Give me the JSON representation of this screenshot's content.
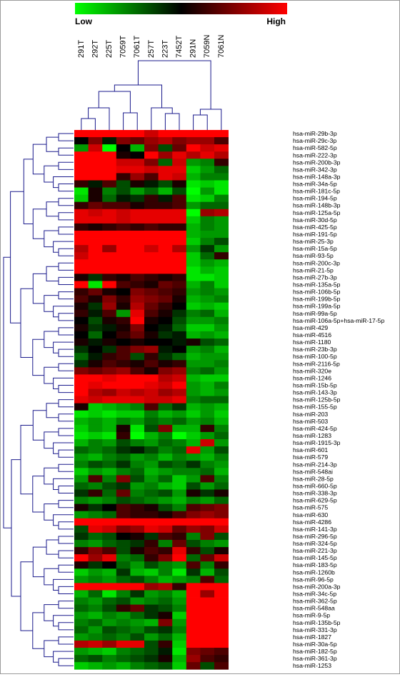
{
  "colors": {
    "low": "#00ff00",
    "mid": "#000000",
    "high": "#ff0000",
    "tree": "#1a1a8c",
    "label": "#000000"
  },
  "legend": {
    "low_label": "Low",
    "high_label": "High"
  },
  "chart_data": {
    "type": "heatmap",
    "title": "",
    "scale": {
      "min": -1,
      "max": 1,
      "min_label": "Low",
      "max_label": "High"
    },
    "columns": [
      "291T",
      "292T",
      "225T",
      "7059T",
      "7061T",
      "257T",
      "223T",
      "7452T",
      "291N",
      "7059N",
      "7061N"
    ],
    "rows": [
      "hsa-miR-29b-3p",
      "hsa-miR-29c-3p",
      "hsa-miR-582-5p",
      "hsa-miR-222-3p",
      "hsa-miR-200b-3p",
      "hsa-miR-342-3p",
      "hsa-miR-148a-3p",
      "hsa-miR-34a-5p",
      "hsa-miR-181c-5p",
      "hsa-miR-194-5p",
      "hsa-miR-148b-3p",
      "hsa-miR-125a-5p",
      "hsa-miR-30d-5p",
      "hsa-miR-425-5p",
      "hsa-miR-191-5p",
      "hsa-miR-25-3p",
      "hsa-miR-15a-5p",
      "hsa-miR-93-5p",
      "hsa-miR-200c-3p",
      "hsa-miR-21-5p",
      "hsa-miR-27b-3p",
      "hsa-miR-135a-5p",
      "hsa-miR-106b-5p",
      "hsa-miR-199b-5p",
      "hsa-miR-199a-5p",
      "hsa-miR-99a-5p",
      "hsa-miR-106a-5p+hsa-miR-17-5p",
      "hsa-miR-429",
      "hsa-miR-4516",
      "hsa-miR-1180",
      "hsa-miR-23b-3p",
      "hsa-miR-100-5p",
      "hsa-miR-2116-5p",
      "hsa-miR-320e",
      "hsa-miR-1246",
      "hsa-miR-15b-5p",
      "hsa-miR-143-3p",
      "hsa-miR-125b-5p",
      "hsa-miR-155-5p",
      "hsa-miR-203",
      "hsa-miR-503",
      "hsa-miR-424-5p",
      "hsa-miR-1283",
      "hsa-miR-1915-3p",
      "hsa-miR-601",
      "hsa-miR-579",
      "hsa-miR-214-3p",
      "hsa-miR-548ai",
      "hsa-miR-28-5p",
      "hsa-miR-660-5p",
      "hsa-miR-338-3p",
      "hsa-miR-629-5p",
      "hsa-miR-575",
      "hsa-miR-630",
      "hsa-miR-4286",
      "hsa-miR-141-3p",
      "hsa-miR-296-5p",
      "hsa-miR-324-5p",
      "hsa-miR-221-3p",
      "hsa-miR-145-5p",
      "hsa-miR-183-5p",
      "hsa-miR-1260b",
      "hsa-miR-96-5p",
      "hsa-miR-200a-3p",
      "hsa-miR-34c-5p",
      "hsa-miR-362-5p",
      "hsa-miR-548aa",
      "hsa-miR-9-5p",
      "hsa-miR-135b-5p",
      "hsa-miR-331-3p",
      "hsa-miR-1827",
      "hsa-miR-30a-5p",
      "hsa-miR-182-5p",
      "hsa-miR-361-3p",
      "hsa-miR-1253"
    ],
    "values": [
      [
        1,
        1,
        1,
        1,
        1,
        0.8,
        1,
        1,
        1,
        1,
        1
      ],
      [
        0,
        0.5,
        -0.1,
        0.5,
        0.4,
        0.6,
        0.7,
        0.5,
        0.6,
        0.6,
        0.3
      ],
      [
        -0.6,
        0.8,
        -1,
        0,
        -0.7,
        0.5,
        -0.3,
        0.4,
        1,
        0.8,
        0.9
      ],
      [
        1,
        1,
        1,
        0.1,
        0,
        1,
        0.6,
        0.9,
        0.7,
        0.9,
        0.7
      ],
      [
        1,
        1,
        1,
        0.8,
        0.8,
        0.5,
        -0.4,
        0.8,
        -0.6,
        -0.5,
        0.2
      ],
      [
        1,
        1,
        1,
        0.9,
        0.9,
        0.8,
        0.9,
        0.9,
        -0.8,
        -0.6,
        -0.4
      ],
      [
        1,
        1,
        1,
        0.2,
        0.6,
        0.3,
        0.9,
        0.8,
        -0.7,
        -0.5,
        -0.5
      ],
      [
        0.2,
        -0.1,
        0.3,
        -0.3,
        0.1,
        -0.1,
        -0.3,
        0.1,
        -0.9,
        -0.8,
        -0.9
      ],
      [
        -0.9,
        0.1,
        -0.5,
        -0.3,
        -0.6,
        -0.4,
        -0.7,
        -0.3,
        -1,
        -0.6,
        -0.9
      ],
      [
        -0.8,
        0.1,
        -0.4,
        -0.1,
        -0.2,
        0.2,
        -0.1,
        0.3,
        -0.9,
        -0.8,
        -0.5
      ],
      [
        0.2,
        0.4,
        0.3,
        0.3,
        0.1,
        0.2,
        0.2,
        0.3,
        -0.6,
        -0.4,
        -0.4
      ],
      [
        0.9,
        0.8,
        0.9,
        0.8,
        0.9,
        0.9,
        0.9,
        0.9,
        -1,
        0.6,
        0.7
      ],
      [
        0.9,
        0.9,
        0.9,
        0.8,
        0.9,
        0.9,
        0.9,
        0.9,
        -0.8,
        -0.5,
        -0.6
      ],
      [
        0.2,
        0.1,
        0.2,
        0.3,
        0.2,
        0.3,
        0.2,
        0.2,
        -0.7,
        -0.5,
        -0.6
      ],
      [
        1,
        1,
        1,
        1,
        1,
        1,
        1,
        1,
        -0.7,
        -0.6,
        -0.6
      ],
      [
        1,
        1,
        1,
        1,
        1,
        1,
        1,
        1,
        -0.8,
        -0.5,
        -0.3
      ],
      [
        0.7,
        1,
        0.6,
        1,
        1,
        0.8,
        1,
        0.7,
        -0.6,
        -0.2,
        -0.6
      ],
      [
        0.8,
        1,
        1,
        1,
        1,
        1,
        1,
        1,
        -0.8,
        -0.4,
        0.2
      ],
      [
        1,
        1,
        1,
        1,
        1,
        1,
        1,
        1,
        -0.8,
        -0.6,
        -0.7
      ],
      [
        1,
        1,
        1,
        1,
        1,
        1,
        1,
        1,
        -0.9,
        -0.7,
        -0.8
      ],
      [
        0.1,
        -0.2,
        0.2,
        0.1,
        0.3,
        0.2,
        0.1,
        0.2,
        -0.9,
        -0.9,
        -0.8
      ],
      [
        1,
        -0.9,
        1,
        0.3,
        0.2,
        0.1,
        0.4,
        0.3,
        -0.7,
        -0.5,
        -0.8
      ],
      [
        0.2,
        0.4,
        0.1,
        0,
        0.5,
        0.4,
        0.3,
        0.2,
        -0.6,
        -0.5,
        -0.6
      ],
      [
        0.3,
        0.1,
        0.5,
        0.2,
        0.6,
        0.5,
        0.4,
        0.1,
        -0.7,
        -0.6,
        -0.5
      ],
      [
        0.1,
        -0.2,
        0.6,
        0.1,
        0.7,
        0.4,
        0.2,
        0,
        -0.8,
        -0.7,
        -0.8
      ],
      [
        0.2,
        -0.1,
        0.3,
        -0.6,
        0.9,
        0.3,
        0.1,
        -0.2,
        -0.5,
        -0.4,
        -0.7
      ],
      [
        0,
        -0.3,
        0.1,
        0.2,
        1,
        0.1,
        0,
        -0.3,
        -0.6,
        -0.6,
        -0.5
      ],
      [
        0.1,
        -0.2,
        -0.1,
        0.1,
        0.5,
        0,
        -0.1,
        -0.4,
        -0.8,
        -0.8,
        -0.6
      ],
      [
        0,
        -0.4,
        0,
        0.2,
        0.4,
        0.1,
        -0.2,
        -0.1,
        -0.7,
        -0.6,
        -0.7
      ],
      [
        0.1,
        -0.1,
        0.1,
        0,
        0.1,
        0,
        0,
        -0.1,
        0.1,
        -0.3,
        -0.4
      ],
      [
        -0.2,
        0,
        -0.2,
        0.3,
        0.5,
        0.6,
        -0.1,
        0,
        -0.6,
        -0.5,
        -0.7
      ],
      [
        -0.4,
        -0.1,
        0.2,
        0.3,
        -0.3,
        0.2,
        -0.2,
        -0.4,
        -0.7,
        -0.6,
        -0.6
      ],
      [
        -0.2,
        0.1,
        0.3,
        0.2,
        0.1,
        0.3,
        0.1,
        0.2,
        -0.6,
        -0.6,
        -0.5
      ],
      [
        0.5,
        0.4,
        0.5,
        0.6,
        0.3,
        0.1,
        0.5,
        0.6,
        -0.5,
        -0.4,
        -0.6
      ],
      [
        1,
        1,
        0.9,
        1,
        1,
        1,
        0.7,
        0.8,
        -0.7,
        -0.8,
        -0.8
      ],
      [
        1,
        0.9,
        1,
        1,
        1,
        0.9,
        0.8,
        1,
        -0.6,
        -0.7,
        -0.5
      ],
      [
        1,
        0.7,
        0.6,
        0.8,
        0.7,
        0.8,
        0.6,
        0.7,
        -0.6,
        -0.7,
        -0.6
      ],
      [
        0.9,
        0.8,
        0.9,
        0.9,
        0.9,
        0.8,
        0.8,
        0.9,
        -0.5,
        -0.4,
        -0.4
      ],
      [
        0.1,
        -0.8,
        -0.7,
        -0.6,
        -0.5,
        0.3,
        -0.4,
        -0.2,
        -0.7,
        -0.6,
        -0.7
      ],
      [
        -0.9,
        -0.8,
        -0.9,
        -0.8,
        -0.8,
        -0.5,
        -0.7,
        -0.6,
        -0.8,
        -0.6,
        -0.8
      ],
      [
        -0.7,
        -0.6,
        -0.7,
        -0.5,
        -0.6,
        -0.4,
        -0.5,
        -0.4,
        -0.6,
        -0.5,
        -0.7
      ],
      [
        -0.8,
        -0.6,
        -0.7,
        0.1,
        -0.9,
        -0.3,
        0.5,
        -0.7,
        -0.7,
        0.2,
        -0.5
      ],
      [
        -0.9,
        -0.8,
        -0.9,
        0.2,
        -1,
        -0.7,
        -0.5,
        -1,
        -0.8,
        -0.6,
        -0.4
      ],
      [
        -0.7,
        -0.5,
        -0.6,
        -0.3,
        -0.5,
        -0.6,
        -0.4,
        -0.5,
        -0.7,
        0.8,
        -0.6
      ],
      [
        -0.4,
        -0.5,
        -0.4,
        -0.2,
        -0.1,
        -0.3,
        -0.5,
        -0.4,
        0.9,
        -0.6,
        -0.3
      ],
      [
        -0.6,
        -0.7,
        -0.5,
        -0.4,
        -0.6,
        -0.5,
        -0.7,
        -0.5,
        -0.6,
        -0.7,
        -0.5
      ],
      [
        -0.5,
        -0.3,
        -0.4,
        -0.2,
        -0.5,
        -0.6,
        -0.3,
        -0.4,
        -0.2,
        -0.5,
        -0.6
      ],
      [
        -0.8,
        -0.6,
        -0.7,
        -0.5,
        -0.4,
        -0.7,
        -0.6,
        -0.5,
        -0.5,
        -0.4,
        -0.7
      ],
      [
        -0.6,
        0.3,
        -0.5,
        0.5,
        -0.3,
        -0.6,
        -0.4,
        -0.8,
        -0.6,
        0.3,
        -0.5
      ],
      [
        -0.4,
        -0.5,
        -0.3,
        -0.2,
        -0.6,
        -0.5,
        -0.7,
        -0.8,
        -0.3,
        -0.6,
        -0.4
      ],
      [
        -0.2,
        0.2,
        -0.4,
        0.4,
        -0.5,
        -0.4,
        -0.3,
        -0.6,
        0.1,
        -0.2,
        0.1
      ],
      [
        -0.5,
        -0.6,
        -0.5,
        -0.3,
        -0.4,
        -0.5,
        -0.6,
        -0.7,
        -0.5,
        -0.6,
        -0.4
      ],
      [
        0.1,
        -0.2,
        0,
        0.3,
        0.2,
        0.1,
        -0.3,
        -0.5,
        0.3,
        0.4,
        0.5
      ],
      [
        -0.6,
        -0.5,
        -0.4,
        0.3,
        0.2,
        0.2,
        0.1,
        0.3,
        0.5,
        0.6,
        0.5
      ],
      [
        1,
        1,
        1,
        1,
        1,
        1,
        1,
        1,
        1,
        1,
        1
      ],
      [
        -0.3,
        0.9,
        0.8,
        0.5,
        0.6,
        0.9,
        0.8,
        0.4,
        0.6,
        0.5,
        0.8
      ],
      [
        -0.2,
        -0.4,
        -0.3,
        0,
        0.1,
        -0.2,
        0.3,
        0.2,
        -0.5,
        0.5,
        -0.3
      ],
      [
        -0.5,
        -0.6,
        -0.4,
        -0.3,
        -0.2,
        0.2,
        -0.5,
        0.4,
        -0.3,
        -0.5,
        -0.6
      ],
      [
        0.2,
        0.5,
        0.3,
        -0.3,
        0.1,
        0.3,
        0.2,
        0.9,
        0.2,
        -0.3,
        0.1
      ],
      [
        1,
        0.6,
        0.9,
        -0.5,
        -0.4,
        0.2,
        0.5,
        1,
        -0.4,
        0.4,
        0.8
      ],
      [
        0.1,
        -0.2,
        0,
        -0.4,
        -0.6,
        -0.3,
        -0.5,
        -0.6,
        0.3,
        -0.5,
        0.2
      ],
      [
        -0.8,
        -0.6,
        -0.7,
        -0.2,
        -0.7,
        -0.8,
        -0.5,
        -0.9,
        -0.2,
        -0.7,
        -0.3
      ],
      [
        -0.6,
        -0.5,
        -0.6,
        -0.4,
        -0.3,
        -0.5,
        -0.7,
        -0.6,
        -0.5,
        0.3,
        -0.4
      ],
      [
        1,
        1,
        1,
        1,
        1,
        0.6,
        0.7,
        0.2,
        1,
        1,
        1
      ],
      [
        -0.7,
        -0.4,
        -0.9,
        -0.5,
        -0.2,
        -0.6,
        -0.5,
        -0.7,
        1,
        0.6,
        1
      ],
      [
        -0.5,
        -0.6,
        -0.4,
        -0.3,
        -0.6,
        -0.5,
        -0.4,
        -0.6,
        1,
        1,
        1
      ],
      [
        -0.4,
        -0.5,
        -0.3,
        0.2,
        0.4,
        -0.2,
        -0.3,
        -0.5,
        1,
        1,
        1
      ],
      [
        -0.6,
        -0.7,
        -0.5,
        -0.6,
        -0.4,
        -0.2,
        0.1,
        -0.8,
        1,
        1,
        1
      ],
      [
        -0.5,
        -0.4,
        -0.6,
        -0.5,
        -0.6,
        -0.7,
        0.5,
        -0.6,
        1,
        1,
        1
      ],
      [
        -0.4,
        -0.6,
        -0.3,
        -0.4,
        -0.5,
        -0.3,
        -0.2,
        -0.5,
        1,
        1,
        1
      ],
      [
        -0.6,
        -0.5,
        -0.4,
        -0.5,
        -0.3,
        -0.6,
        -0.4,
        -0.7,
        1,
        1,
        1
      ],
      [
        0.7,
        0.8,
        0.6,
        0.9,
        0.9,
        -0.3,
        0.2,
        -0.8,
        1,
        1,
        1
      ],
      [
        -0.6,
        -0.7,
        -0.8,
        -0.5,
        -0.4,
        -0.3,
        -0.1,
        -0.9,
        0.5,
        0.4,
        0.3
      ],
      [
        -0.4,
        -0.3,
        -0.5,
        -0.4,
        -0.3,
        -0.2,
        0.1,
        -0.7,
        0.6,
        0.3,
        0.2
      ],
      [
        -0.8,
        -0.7,
        -0.6,
        -0.7,
        -0.5,
        -0.4,
        -0.3,
        -0.8,
        0.4,
        -0.3,
        0.3
      ]
    ]
  }
}
